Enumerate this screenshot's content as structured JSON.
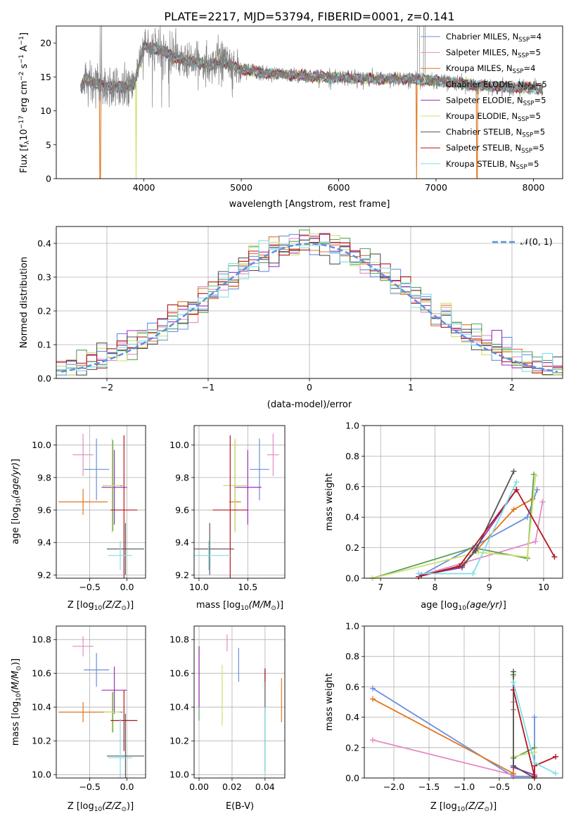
{
  "figure": {
    "title": "PLATE=2217, MJD=53794, FIBERID=0001, z=0.141"
  },
  "colors": {
    "Chabrier MILES": "#6a8fe0",
    "Salpeter MILES": "#e58bc3",
    "Kroupa MILES": "#e0771e",
    "Chabrier ELODIE": "#5aa05a",
    "Salpeter ELODIE": "#9b30b8",
    "Kroupa ELODIE": "#cfe070",
    "Chabrier STELIB": "#555555",
    "Salpeter STELIB": "#b3171e",
    "Kroupa STELIB": "#7fdfe8",
    "data": "#808080",
    "normal": "#5b8fe0",
    "grid": "#b0b0b0"
  },
  "chart_data": [
    {
      "id": "spectrum",
      "type": "line",
      "xlabel": "wavelength [Angstrom, rest frame]",
      "ylabel": "Flux [f",
      "xlim": [
        3100,
        8300
      ],
      "ylim": [
        0,
        22.5
      ],
      "xticks": [
        4000,
        5000,
        6000,
        7000,
        8000
      ],
      "yticks": [
        0,
        5,
        10,
        15,
        20
      ],
      "grid": false,
      "legend_position": "right",
      "legend": [
        {
          "model": "Chabrier MILES",
          "label": "Chabrier MILES, N",
          "n": "4"
        },
        {
          "model": "Salpeter MILES",
          "label": "Salpeter MILES, N",
          "n": "5"
        },
        {
          "model": "Kroupa MILES",
          "label": "Kroupa MILES, N",
          "n": "4"
        },
        {
          "model": "Chabrier ELODIE",
          "label": "Chabrier ELODIE, N",
          "n": "5"
        },
        {
          "model": "Salpeter ELODIE",
          "label": "Salpeter ELODIE, N",
          "n": "5"
        },
        {
          "model": "Kroupa ELODIE",
          "label": "Kroupa ELODIE, N",
          "n": "5"
        },
        {
          "model": "Chabrier STELIB",
          "label": "Chabrier STELIB, N",
          "n": "5"
        },
        {
          "model": "Salpeter STELIB",
          "label": "Salpeter STELIB, N",
          "n": "5"
        },
        {
          "model": "Kroupa STELIB",
          "label": "Kroupa STELIB, N",
          "n": "5"
        }
      ],
      "continuum": [
        [
          3350,
          13.5
        ],
        [
          3400,
          14.8
        ],
        [
          3500,
          14.0
        ],
        [
          3600,
          13.6
        ],
        [
          3700,
          13.7
        ],
        [
          3800,
          13.4
        ],
        [
          3900,
          14.0
        ],
        [
          4000,
          19.6
        ],
        [
          4100,
          19.2
        ],
        [
          4200,
          18.8
        ],
        [
          4300,
          18.0
        ],
        [
          4400,
          17.5
        ],
        [
          4500,
          17.2
        ],
        [
          4600,
          17.0
        ],
        [
          4700,
          16.8
        ],
        [
          4800,
          17.2
        ],
        [
          4900,
          16.6
        ],
        [
          5000,
          16.2
        ],
        [
          5200,
          15.6
        ],
        [
          5400,
          15.4
        ],
        [
          5600,
          15.2
        ],
        [
          5800,
          15.0
        ],
        [
          6000,
          14.9
        ],
        [
          6200,
          14.8
        ],
        [
          6400,
          14.7
        ],
        [
          6600,
          14.8
        ],
        [
          6800,
          14.6
        ],
        [
          7000,
          14.4
        ],
        [
          7200,
          14.2
        ],
        [
          7400,
          13.7
        ],
        [
          7600,
          13.6
        ],
        [
          7800,
          13.4
        ],
        [
          8000,
          13.4
        ],
        [
          8100,
          13.2
        ]
      ],
      "dropouts": [
        {
          "model": "Kroupa MILES",
          "x": 3550
        },
        {
          "model": "Kroupa ELODIE",
          "x": 3920
        },
        {
          "model": "Kroupa MILES",
          "x": 6800
        },
        {
          "model": "Kroupa MILES",
          "x": 7420
        }
      ]
    },
    {
      "id": "residuals",
      "type": "step",
      "xlabel": "(data-model)/error",
      "ylabel": "Normed distribution",
      "xlim": [
        -2.5,
        2.5
      ],
      "ylim": [
        0,
        0.45
      ],
      "xticks": [
        -2,
        -1,
        0,
        1,
        2
      ],
      "yticks": [
        0.0,
        0.1,
        0.2,
        0.3,
        0.4
      ],
      "grid": true,
      "legend_position": "top-right",
      "normal_label": "𝒩(0, 1)"
    },
    {
      "id": "age-vs-Z",
      "type": "errorbar",
      "xlabel": "Z [log",
      "ylabel": "age  [log",
      "xlim": [
        -0.95,
        0.25
      ],
      "ylim": [
        9.18,
        10.12
      ],
      "xticks": [
        -0.5,
        0.0
      ],
      "yticks": [
        9.2,
        9.4,
        9.6,
        9.8,
        10.0
      ],
      "grid": true,
      "points": [
        {
          "model": "Chabrier MILES",
          "x": -0.41,
          "y": 9.85,
          "xerr": 0.17,
          "yerr": 0.19
        },
        {
          "model": "Salpeter MILES",
          "x": -0.59,
          "y": 9.94,
          "xerr": 0.14,
          "yerr": 0.13
        },
        {
          "model": "Kroupa MILES",
          "x": -0.59,
          "y": 9.65,
          "xerr": 0.33,
          "yerr": 0.08
        },
        {
          "model": "Chabrier ELODIE",
          "x": -0.19,
          "y": 9.75,
          "xerr": 0.13,
          "yerr": 0.28
        },
        {
          "model": "Salpeter ELODIE",
          "x": -0.17,
          "y": 9.74,
          "xerr": 0.17,
          "yerr": 0.23
        },
        {
          "model": "Kroupa ELODIE",
          "x": -0.2,
          "y": 9.75,
          "xerr": 0.11,
          "yerr": 0.29
        },
        {
          "model": "Chabrier STELIB",
          "x": -0.02,
          "y": 9.36,
          "xerr": 0.25,
          "yerr": 0.16
        },
        {
          "model": "Salpeter STELIB",
          "x": -0.04,
          "y": 9.6,
          "xerr": 0.18,
          "yerr": 0.46
        },
        {
          "model": "Kroupa STELIB",
          "x": -0.09,
          "y": 9.32,
          "xerr": 0.16,
          "yerr": 0.09
        }
      ]
    },
    {
      "id": "age-vs-mass",
      "type": "errorbar",
      "xlabel": "mass [log",
      "ylabel": "",
      "xlim": [
        9.95,
        10.88
      ],
      "ylim": [
        9.18,
        10.12
      ],
      "xticks": [
        10.0,
        10.5
      ],
      "yticks": [
        9.2,
        9.4,
        9.6,
        9.8,
        10.0
      ],
      "grid": true,
      "points": [
        {
          "model": "Chabrier MILES",
          "x": 10.62,
          "y": 9.85,
          "xerr": 0.1,
          "yerr": 0.19
        },
        {
          "model": "Salpeter MILES",
          "x": 10.76,
          "y": 9.94,
          "xerr": 0.06,
          "yerr": 0.13
        },
        {
          "model": "Kroupa MILES",
          "x": 10.37,
          "y": 9.65,
          "xerr": 0.06,
          "yerr": 0.08
        },
        {
          "model": "Chabrier ELODIE",
          "x": 10.37,
          "y": 9.75,
          "xerr": 0.12,
          "yerr": 0.28
        },
        {
          "model": "Salpeter ELODIE",
          "x": 10.5,
          "y": 9.74,
          "xerr": 0.14,
          "yerr": 0.23
        },
        {
          "model": "Kroupa ELODIE",
          "x": 10.37,
          "y": 9.75,
          "xerr": 0.12,
          "yerr": 0.29
        },
        {
          "model": "Chabrier STELIB",
          "x": 10.11,
          "y": 9.36,
          "xerr": 0.25,
          "yerr": 0.16
        },
        {
          "model": "Salpeter STELIB",
          "x": 10.32,
          "y": 9.6,
          "xerr": 0.18,
          "yerr": 0.46
        },
        {
          "model": "Kroupa STELIB",
          "x": 10.1,
          "y": 9.32,
          "xerr": 0.23,
          "yerr": 0.09
        }
      ]
    },
    {
      "id": "weight-vs-age",
      "type": "line",
      "xlabel": "age  [log",
      "ylabel": "mass weight",
      "xlim": [
        6.7,
        10.35
      ],
      "ylim": [
        0,
        1
      ],
      "xticks": [
        7,
        8,
        9,
        10
      ],
      "yticks": [
        0.0,
        0.2,
        0.4,
        0.6,
        0.8,
        1.0
      ],
      "grid": true,
      "series": [
        {
          "model": "Chabrier MILES",
          "x": [
            7.75,
            9.7,
            9.88
          ],
          "y": [
            0.02,
            0.4,
            0.58
          ]
        },
        {
          "model": "Salpeter MILES",
          "x": [
            7.75,
            9.85,
            9.98
          ],
          "y": [
            0.02,
            0.24,
            0.5
          ]
        },
        {
          "model": "Kroupa MILES",
          "x": [
            8.55,
            9.45,
            9.8
          ],
          "y": [
            0.1,
            0.45,
            0.52
          ]
        },
        {
          "model": "Chabrier ELODIE",
          "x": [
            6.85,
            8.7,
            9.7,
            9.82
          ],
          "y": [
            0.0,
            0.2,
            0.13,
            0.68
          ]
        },
        {
          "model": "Salpeter ELODIE",
          "x": [
            7.75,
            8.5,
            9.5
          ],
          "y": [
            0.02,
            0.07,
            0.58
          ]
        },
        {
          "model": "Kroupa ELODIE",
          "x": [
            6.85,
            8.8,
            9.7,
            9.85
          ],
          "y": [
            0.0,
            0.17,
            0.14,
            0.67
          ]
        },
        {
          "model": "Chabrier STELIB",
          "x": [
            7.7,
            8.5,
            8.75,
            9.45
          ],
          "y": [
            0.01,
            0.08,
            0.18,
            0.7
          ]
        },
        {
          "model": "Salpeter STELIB",
          "x": [
            7.7,
            8.45,
            9.5,
            10.2
          ],
          "y": [
            0.01,
            0.08,
            0.58,
            0.14
          ]
        },
        {
          "model": "Kroupa STELIB",
          "x": [
            7.7,
            8.7,
            9.5
          ],
          "y": [
            0.03,
            0.03,
            0.63
          ]
        }
      ]
    },
    {
      "id": "mass-vs-Z",
      "type": "errorbar",
      "xlabel": "Z [log",
      "ylabel": "mass [log",
      "xlim": [
        -0.95,
        0.25
      ],
      "ylim": [
        9.98,
        10.88
      ],
      "xticks": [
        -0.5,
        0.0
      ],
      "yticks": [
        10.0,
        10.2,
        10.4,
        10.6,
        10.8
      ],
      "grid": true,
      "points": [
        {
          "model": "Chabrier MILES",
          "x": -0.41,
          "y": 10.62,
          "xerr": 0.17,
          "yerr": 0.1
        },
        {
          "model": "Salpeter MILES",
          "x": -0.59,
          "y": 10.76,
          "xerr": 0.14,
          "yerr": 0.06
        },
        {
          "model": "Kroupa MILES",
          "x": -0.59,
          "y": 10.37,
          "xerr": 0.33,
          "yerr": 0.06
        },
        {
          "model": "Chabrier ELODIE",
          "x": -0.19,
          "y": 10.37,
          "xerr": 0.13,
          "yerr": 0.12
        },
        {
          "model": "Salpeter ELODIE",
          "x": -0.17,
          "y": 10.5,
          "xerr": 0.17,
          "yerr": 0.14
        },
        {
          "model": "Kroupa ELODIE",
          "x": -0.2,
          "y": 10.37,
          "xerr": 0.11,
          "yerr": 0.12
        },
        {
          "model": "Chabrier STELIB",
          "x": -0.02,
          "y": 10.11,
          "xerr": 0.25,
          "yerr": 0.25
        },
        {
          "model": "Salpeter STELIB",
          "x": -0.04,
          "y": 10.32,
          "xerr": 0.18,
          "yerr": 0.18
        },
        {
          "model": "Kroupa STELIB",
          "x": -0.09,
          "y": 10.1,
          "xerr": 0.16,
          "yerr": 0.23
        }
      ]
    },
    {
      "id": "mass-vs-EBV",
      "type": "errorbar",
      "xlabel": "E(B-V)",
      "ylabel": "",
      "xlim": [
        -0.003,
        0.052
      ],
      "ylim": [
        9.98,
        10.88
      ],
      "xticks": [
        0.0,
        0.02,
        0.04
      ],
      "yticks": [
        10.0,
        10.2,
        10.4,
        10.6,
        10.8
      ],
      "grid": true,
      "points": [
        {
          "model": "Chabrier MILES",
          "x": 0.024,
          "y": 10.65,
          "xerr": 0,
          "yerr": 0.1
        },
        {
          "model": "Salpeter MILES",
          "x": 0.017,
          "y": 10.78,
          "xerr": 0,
          "yerr": 0.05
        },
        {
          "model": "Kroupa MILES",
          "x": 0.05,
          "y": 10.44,
          "xerr": 0,
          "yerr": 0.13
        },
        {
          "model": "Chabrier ELODIE",
          "x": 0.0,
          "y": 10.54,
          "xerr": 0,
          "yerr": 0.22
        },
        {
          "model": "Salpeter ELODIE",
          "x": 0.0,
          "y": 10.58,
          "xerr": 0,
          "yerr": 0.18
        },
        {
          "model": "Kroupa ELODIE",
          "x": 0.014,
          "y": 10.47,
          "xerr": 0,
          "yerr": 0.18
        },
        {
          "model": "Chabrier STELIB",
          "x": 0.04,
          "y": 10.32,
          "xerr": 0,
          "yerr": 0.3
        },
        {
          "model": "Salpeter STELIB",
          "x": 0.04,
          "y": 10.59,
          "xerr": 0,
          "yerr": 0.04
        },
        {
          "model": "Kroupa STELIB",
          "x": 0.04,
          "y": 10.2,
          "xerr": 0,
          "yerr": 0.2
        }
      ]
    },
    {
      "id": "weight-vs-Z",
      "type": "line",
      "xlabel": "Z [log",
      "ylabel": "mass weight",
      "xlim": [
        -2.42,
        0.4
      ],
      "ylim": [
        0,
        1
      ],
      "xticks": [
        -2.0,
        -1.5,
        -1.0,
        -0.5,
        0.0
      ],
      "yticks": [
        0.0,
        0.2,
        0.4,
        0.6,
        0.8,
        1.0
      ],
      "grid": true,
      "series": [
        {
          "model": "Chabrier MILES",
          "x": [
            -2.3,
            -0.3,
            0.0,
            0.0
          ],
          "y": [
            0.59,
            0.01,
            0.01,
            0.4
          ]
        },
        {
          "model": "Salpeter MILES",
          "x": [
            -2.3,
            -0.3,
            -0.3
          ],
          "y": [
            0.25,
            0.02,
            0.5
          ]
        },
        {
          "model": "Kroupa MILES",
          "x": [
            -2.3,
            -0.3,
            -0.3
          ],
          "y": [
            0.52,
            0.03,
            0.45
          ]
        },
        {
          "model": "Chabrier ELODIE",
          "x": [
            -0.3,
            -0.3,
            0.0
          ],
          "y": [
            0.68,
            0.13,
            0.2
          ]
        },
        {
          "model": "Salpeter ELODIE",
          "x": [
            -0.3,
            -0.3,
            0.0
          ],
          "y": [
            0.58,
            0.07,
            0.02
          ]
        },
        {
          "model": "Kroupa ELODIE",
          "x": [
            -0.3,
            -0.3,
            0.0
          ],
          "y": [
            0.67,
            0.14,
            0.17
          ]
        },
        {
          "model": "Chabrier STELIB",
          "x": [
            -0.3,
            -0.3,
            0.0
          ],
          "y": [
            0.7,
            0.08,
            0.0
          ]
        },
        {
          "model": "Salpeter STELIB",
          "x": [
            -0.3,
            0.0,
            0.0,
            0.3
          ],
          "y": [
            0.58,
            0.01,
            0.08,
            0.14
          ]
        },
        {
          "model": "Kroupa STELIB",
          "x": [
            -0.3,
            0.0,
            0.3
          ],
          "y": [
            0.63,
            0.1,
            0.03
          ]
        }
      ]
    }
  ]
}
